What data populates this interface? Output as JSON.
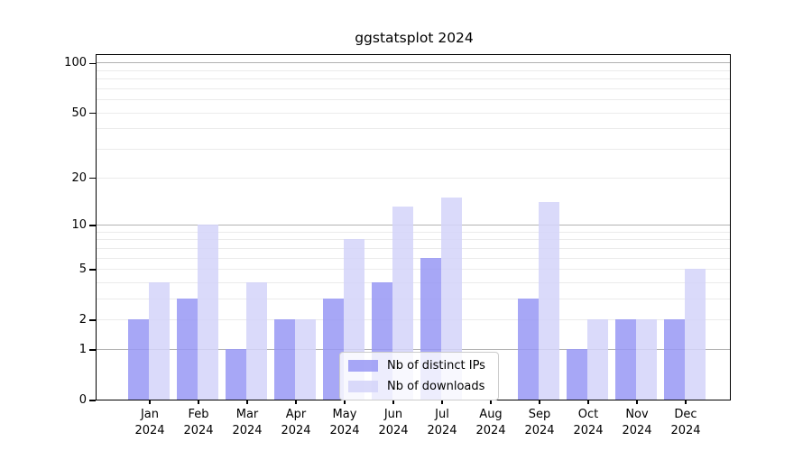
{
  "chart_data": {
    "type": "bar",
    "title": "ggstatsplot 2024",
    "yscale": "log1p",
    "categories": [
      "Jan",
      "Feb",
      "Mar",
      "Apr",
      "May",
      "Jun",
      "Jul",
      "Aug",
      "Sep",
      "Oct",
      "Nov",
      "Dec"
    ],
    "xtick_year": "2024",
    "series": [
      {
        "name": "Nb of distinct IPs",
        "color": "#9898f5",
        "values": [
          2,
          3,
          1,
          2,
          3,
          4,
          6,
          0,
          3,
          1,
          2,
          2
        ]
      },
      {
        "name": "Nb of downloads",
        "color": "#d4d4f9",
        "values": [
          4,
          10,
          4,
          2,
          8,
          13,
          15,
          0,
          14,
          2,
          2,
          5
        ]
      }
    ],
    "bar_opacity": 0.85,
    "ylim": [
      0,
      111
    ],
    "yticks": [
      0,
      1,
      2,
      5,
      10,
      20,
      50,
      100
    ],
    "grid": {
      "major": [
        1,
        10,
        100
      ],
      "minor": [
        2,
        3,
        4,
        5,
        6,
        7,
        8,
        9,
        20,
        30,
        40,
        50,
        60,
        70,
        80,
        90
      ]
    },
    "legend_position": "lower center"
  },
  "colors": {
    "background": "#ffffff",
    "spine": "#000000",
    "grid_major": "#b2b2b2",
    "grid_minor": "#ebebeb",
    "bar_distinct_ips": "#9898f5",
    "bar_downloads": "#d4d4f9",
    "legend_border": "#cccccc"
  }
}
